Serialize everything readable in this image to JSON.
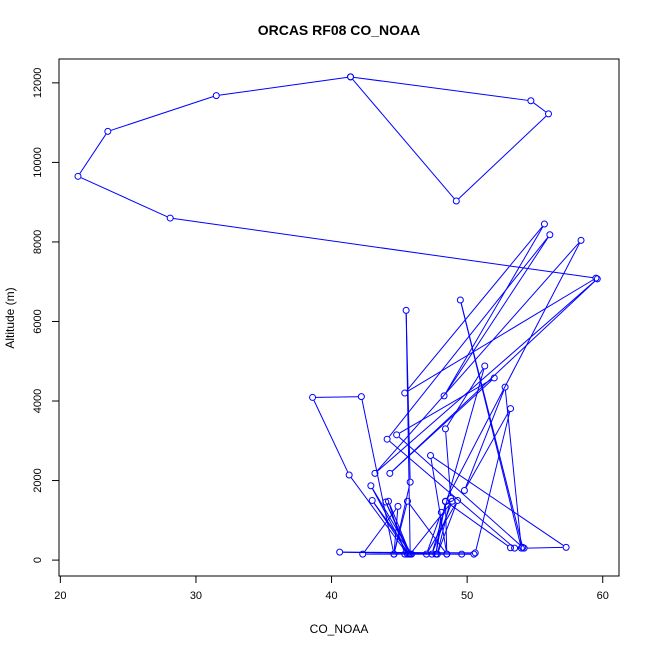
{
  "chart_data": {
    "type": "scatter",
    "title": "ORCAS RF08 CO_NOAA",
    "xlabel": "CO_NOAA",
    "ylabel": "Altitude (m)",
    "xlim": [
      19.9,
      61.2
    ],
    "ylim": [
      -400,
      12600
    ],
    "xticks": [
      20,
      30,
      40,
      50,
      60
    ],
    "yticks": [
      0,
      2000,
      4000,
      6000,
      8000,
      10000,
      12000
    ],
    "grid": false,
    "legend": "none",
    "colors": {
      "series": "#0000ff",
      "axis": "#000000"
    },
    "series": [
      {
        "connected": true,
        "points": [
          [
            41.4,
            12150
          ],
          [
            54.7,
            11550
          ],
          [
            56.0,
            11220
          ],
          [
            49.2,
            9030
          ],
          [
            41.4,
            12150
          ],
          [
            31.5,
            11680
          ],
          [
            23.5,
            10780
          ],
          [
            21.3,
            9650
          ],
          [
            28.1,
            8600
          ],
          [
            59.5,
            7090
          ],
          [
            45.4,
            4200
          ],
          [
            55.7,
            8450
          ],
          [
            48.3,
            4130
          ],
          [
            56.1,
            8180
          ],
          [
            44.1,
            3040
          ],
          [
            53.5,
            300
          ],
          [
            54.2,
            300
          ],
          [
            57.3,
            320
          ],
          [
            47.3,
            2630
          ],
          [
            48.5,
            150
          ],
          [
            48.4,
            1470
          ],
          [
            47.7,
            150
          ],
          [
            48.1,
            1200
          ],
          [
            47.0,
            150
          ],
          [
            49.3,
            1500
          ],
          [
            47.8,
            150
          ],
          [
            48.8,
            1550
          ],
          [
            48.4,
            3300
          ],
          [
            51.3,
            4880
          ],
          [
            47.4,
            150
          ],
          [
            48.9,
            1480
          ],
          [
            45.8,
            150
          ],
          [
            45.5,
            6280
          ],
          [
            45.8,
            1960
          ],
          [
            44.6,
            150
          ],
          [
            45.6,
            1480
          ],
          [
            48.5,
            150
          ],
          [
            45.4,
            150
          ],
          [
            44.2,
            1480
          ],
          [
            45.8,
            150
          ],
          [
            44.0,
            1460
          ],
          [
            45.7,
            150
          ],
          [
            43.0,
            1500
          ],
          [
            45.9,
            150
          ],
          [
            42.9,
            1870
          ],
          [
            45.6,
            150
          ],
          [
            41.3,
            2140
          ],
          [
            38.6,
            4090
          ],
          [
            42.2,
            4110
          ],
          [
            44.6,
            150
          ],
          [
            44.9,
            1350
          ],
          [
            42.3,
            150
          ],
          [
            50.5,
            150
          ],
          [
            49.6,
            150
          ],
          [
            40.6,
            200
          ],
          [
            50.6,
            180
          ],
          [
            53.2,
            3810
          ],
          [
            49.8,
            1750
          ],
          [
            52.8,
            4350
          ],
          [
            54.0,
            300
          ],
          [
            49.5,
            6540
          ],
          [
            54.1,
            320
          ],
          [
            44.8,
            3150
          ],
          [
            52.0,
            4580
          ],
          [
            44.3,
            2180
          ],
          [
            59.6,
            7070
          ],
          [
            43.2,
            2180
          ],
          [
            58.4,
            8040
          ],
          [
            48.4,
            1480
          ],
          [
            53.2,
            310
          ]
        ]
      }
    ]
  }
}
